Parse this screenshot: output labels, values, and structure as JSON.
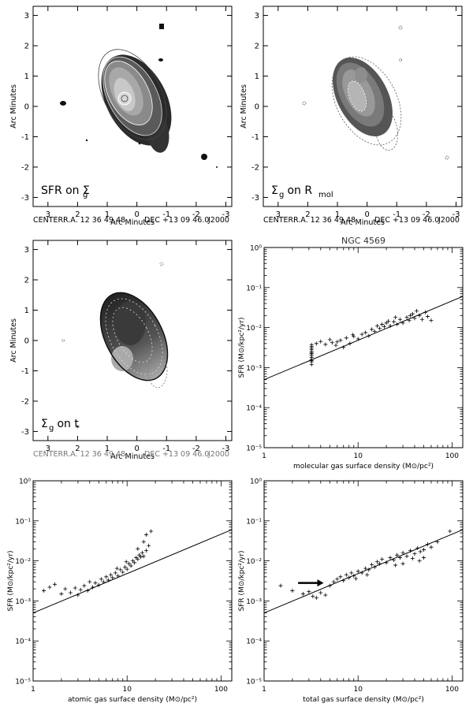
{
  "figure": {
    "center_line": {
      "center": "CENTER:",
      "ra": "R.A. 12 36 49.48",
      "dec": "DEC +13 09 46.0",
      "epoch": "J2000"
    }
  },
  "chart_data": [
    {
      "type": "heatmap",
      "panel": "map-1",
      "xlabel": "Arc Minutes",
      "ylabel": "Arc Minutes",
      "label_main": "SFR on Σ",
      "label_sub": "g",
      "xlim": [
        3.5,
        -3.2
      ],
      "ylim": [
        -3.3,
        3.3
      ],
      "xticks": [
        3,
        2,
        1,
        0,
        -1,
        -2,
        -3
      ],
      "yticks": [
        3,
        2,
        1,
        0,
        -1,
        -2,
        -3
      ]
    },
    {
      "type": "heatmap",
      "panel": "map-2",
      "xlabel": "Arc Minutes",
      "ylabel": "Arc Minutes",
      "label_main": "Σ",
      "label_sub": "g",
      "label_main2": " on R",
      "label_sub2": "mol",
      "xlim": [
        3.5,
        -3.2
      ],
      "ylim": [
        -3.3,
        3.3
      ],
      "xticks": [
        3,
        2,
        1,
        0,
        -1,
        -2,
        -3
      ],
      "yticks": [
        3,
        2,
        1,
        0,
        -1,
        -2,
        -3
      ]
    },
    {
      "type": "heatmap",
      "panel": "map-3",
      "xlabel": "Arc Minutes",
      "ylabel": "Arc Minutes",
      "label_main": "Σ",
      "label_sub": "g",
      "label_main2": " on t",
      "label_sub2": "*",
      "xlim": [
        3.5,
        -3.2
      ],
      "ylim": [
        -3.3,
        3.3
      ],
      "xticks": [
        3,
        2,
        1,
        0,
        -1,
        -2,
        -3
      ],
      "yticks": [
        3,
        2,
        1,
        0,
        -1,
        -2,
        -3
      ]
    },
    {
      "type": "scatter",
      "panel": "scatter-molecular",
      "title": "NGC 4569",
      "xlabel": "molecular gas surface density (M⊙/pc²)",
      "ylabel": "SFR (M⊙/kpc²/yr)",
      "xscale": "log",
      "yscale": "log",
      "xlim": [
        1,
        130
      ],
      "ylim": [
        1e-05,
        1
      ],
      "xticks": [
        "1",
        "10",
        "100"
      ],
      "yticks": [
        "10⁰",
        "10⁻¹",
        "10⁻²",
        "10⁻³",
        "10⁻⁴",
        "10⁻⁵"
      ],
      "fit_line": [
        [
          1,
          0.0005
        ],
        [
          130,
          0.06
        ]
      ],
      "points": [
        [
          3.2,
          0.0012
        ],
        [
          3.2,
          0.0014
        ],
        [
          3.2,
          0.0016
        ],
        [
          3.2,
          0.0018
        ],
        [
          3.2,
          0.002
        ],
        [
          3.2,
          0.0022
        ],
        [
          3.2,
          0.0025
        ],
        [
          3.2,
          0.0028
        ],
        [
          3.2,
          0.0031
        ],
        [
          3.2,
          0.0034
        ],
        [
          3.2,
          0.0037
        ],
        [
          3.2,
          0.0015
        ],
        [
          3.2,
          0.0023
        ],
        [
          3.6,
          0.004
        ],
        [
          4.0,
          0.0045
        ],
        [
          4.5,
          0.0038
        ],
        [
          5.0,
          0.005
        ],
        [
          5.3,
          0.0042
        ],
        [
          5.8,
          0.0036
        ],
        [
          6.5,
          0.0048
        ],
        [
          7.0,
          0.0032
        ],
        [
          7.5,
          0.0055
        ],
        [
          8.2,
          0.004
        ],
        [
          9.0,
          0.006
        ],
        [
          10,
          0.0052
        ],
        [
          11,
          0.0068
        ],
        [
          12,
          0.0075
        ],
        [
          13,
          0.0062
        ],
        [
          14,
          0.009
        ],
        [
          15,
          0.008
        ],
        [
          16,
          0.011
        ],
        [
          17,
          0.0095
        ],
        [
          18,
          0.012
        ],
        [
          19,
          0.0105
        ],
        [
          20,
          0.013
        ],
        [
          22,
          0.011
        ],
        [
          24,
          0.014
        ],
        [
          26,
          0.012
        ],
        [
          28,
          0.016
        ],
        [
          30,
          0.013
        ],
        [
          33,
          0.018
        ],
        [
          35,
          0.015
        ],
        [
          38,
          0.022
        ],
        [
          40,
          0.017
        ],
        [
          45,
          0.02
        ],
        [
          48,
          0.016
        ],
        [
          52,
          0.024
        ],
        [
          55,
          0.019
        ],
        [
          60,
          0.015
        ],
        [
          42,
          0.026
        ],
        [
          36,
          0.02
        ],
        [
          25,
          0.018
        ],
        [
          21,
          0.0145
        ],
        [
          6.0,
          0.0044
        ],
        [
          8.8,
          0.0066
        ]
      ]
    },
    {
      "type": "scatter",
      "panel": "scatter-atomic",
      "xlabel": "atomic gas surface density (M⊙/pc²)",
      "ylabel": "SFR (M⊙/kpc²/yr)",
      "xscale": "log",
      "yscale": "log",
      "xlim": [
        1,
        130
      ],
      "ylim": [
        1e-05,
        1
      ],
      "xticks": [
        "1",
        "10",
        "100"
      ],
      "yticks": [
        "10⁰",
        "10⁻¹",
        "10⁻²",
        "10⁻³",
        "10⁻⁴",
        "10⁻⁵"
      ],
      "fit_line": [
        [
          1,
          0.0005
        ],
        [
          130,
          0.06
        ]
      ],
      "points": [
        [
          1.3,
          0.0018
        ],
        [
          1.5,
          0.0022
        ],
        [
          1.7,
          0.0026
        ],
        [
          2.0,
          0.0015
        ],
        [
          2.2,
          0.002
        ],
        [
          2.5,
          0.0016
        ],
        [
          2.8,
          0.0021
        ],
        [
          3.0,
          0.0014
        ],
        [
          3.2,
          0.0019
        ],
        [
          3.5,
          0.0024
        ],
        [
          3.8,
          0.0018
        ],
        [
          4.0,
          0.003
        ],
        [
          4.3,
          0.0022
        ],
        [
          4.6,
          0.0028
        ],
        [
          5.0,
          0.0025
        ],
        [
          5.3,
          0.0035
        ],
        [
          5.6,
          0.003
        ],
        [
          6.0,
          0.004
        ],
        [
          6.3,
          0.0033
        ],
        [
          6.7,
          0.0045
        ],
        [
          7.0,
          0.0038
        ],
        [
          7.5,
          0.005
        ],
        [
          8.0,
          0.0042
        ],
        [
          8.5,
          0.006
        ],
        [
          9.0,
          0.0052
        ],
        [
          9.5,
          0.007
        ],
        [
          10,
          0.0062
        ],
        [
          10.5,
          0.0085
        ],
        [
          11,
          0.0075
        ],
        [
          11.5,
          0.01
        ],
        [
          12,
          0.009
        ],
        [
          12.5,
          0.012
        ],
        [
          13,
          0.011
        ],
        [
          13.5,
          0.014
        ],
        [
          14,
          0.0125
        ],
        [
          14.5,
          0.016
        ],
        [
          15,
          0.013
        ],
        [
          16,
          0.018
        ],
        [
          17,
          0.024
        ],
        [
          18,
          0.055
        ],
        [
          16,
          0.045
        ],
        [
          15,
          0.03
        ],
        [
          13,
          0.02
        ],
        [
          9.8,
          0.0095
        ],
        [
          7.8,
          0.0065
        ]
      ]
    },
    {
      "type": "scatter",
      "panel": "scatter-total",
      "xlabel": "total gas surface density (M⊙/pc²)",
      "ylabel": "SFR (M⊙/kpc²/yr)",
      "xscale": "log",
      "yscale": "log",
      "xlim": [
        1,
        130
      ],
      "ylim": [
        1e-05,
        1
      ],
      "xticks": [
        "1",
        "10",
        "100"
      ],
      "yticks": [
        "10⁰",
        "10⁻¹",
        "10⁻²",
        "10⁻³",
        "10⁻⁴",
        "10⁻⁵"
      ],
      "fit_line": [
        [
          1,
          0.0005
        ],
        [
          130,
          0.06
        ]
      ],
      "arrow": {
        "from": [
          2.3,
          0.0028
        ],
        "to": [
          4.3,
          0.0028
        ]
      },
      "points": [
        [
          1.5,
          0.0024
        ],
        [
          2.0,
          0.0018
        ],
        [
          2.6,
          0.0015
        ],
        [
          3.0,
          0.0017
        ],
        [
          3.3,
          0.0013
        ],
        [
          3.6,
          0.0012
        ],
        [
          4.0,
          0.0016
        ],
        [
          4.5,
          0.0014
        ],
        [
          5.0,
          0.0024
        ],
        [
          5.5,
          0.003
        ],
        [
          6.0,
          0.0035
        ],
        [
          6.5,
          0.004
        ],
        [
          7.0,
          0.0032
        ],
        [
          7.5,
          0.0045
        ],
        [
          8.0,
          0.0038
        ],
        [
          8.5,
          0.005
        ],
        [
          9.0,
          0.0042
        ],
        [
          10,
          0.0055
        ],
        [
          11,
          0.005
        ],
        [
          12,
          0.0065
        ],
        [
          13,
          0.006
        ],
        [
          14,
          0.008
        ],
        [
          15,
          0.007
        ],
        [
          16,
          0.0095
        ],
        [
          17,
          0.0085
        ],
        [
          18,
          0.011
        ],
        [
          20,
          0.009
        ],
        [
          22,
          0.012
        ],
        [
          24,
          0.0105
        ],
        [
          26,
          0.014
        ],
        [
          28,
          0.012
        ],
        [
          30,
          0.016
        ],
        [
          33,
          0.013
        ],
        [
          36,
          0.018
        ],
        [
          40,
          0.015
        ],
        [
          43,
          0.021
        ],
        [
          46,
          0.017
        ],
        [
          50,
          0.019
        ],
        [
          55,
          0.026
        ],
        [
          60,
          0.022
        ],
        [
          50,
          0.012
        ],
        [
          45,
          0.01
        ],
        [
          38,
          0.0115
        ],
        [
          30,
          0.0085
        ],
        [
          25,
          0.0078
        ],
        [
          95,
          0.055
        ],
        [
          70,
          0.03
        ],
        [
          12.5,
          0.0045
        ],
        [
          9.5,
          0.0036
        ]
      ]
    }
  ]
}
